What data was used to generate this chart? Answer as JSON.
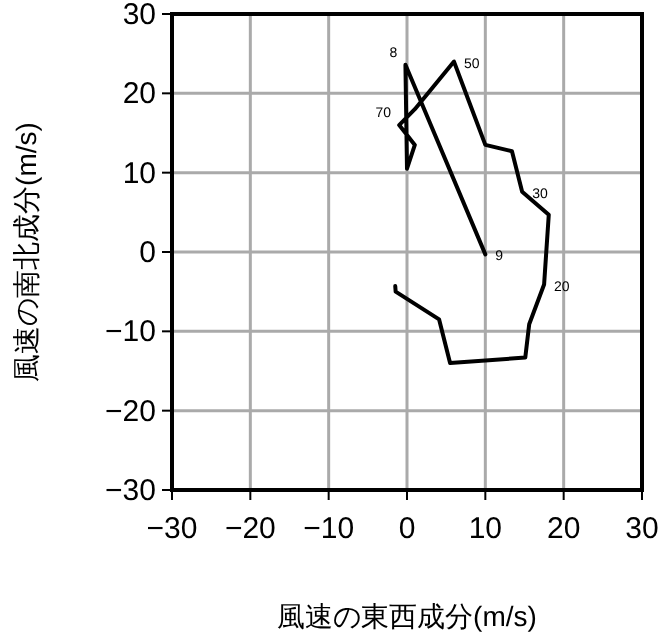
{
  "chart_data": {
    "type": "line",
    "xlabel": "風速の東西成分(m/s)",
    "ylabel": "風速の南北成分(m/s)",
    "xlim": [
      -30,
      30
    ],
    "ylim": [
      -30,
      30
    ],
    "xticks": [
      -30,
      -20,
      -10,
      0,
      10,
      20,
      30
    ],
    "yticks": [
      -30,
      -20,
      -10,
      0,
      10,
      20,
      30
    ],
    "grid": true,
    "series": [
      {
        "color": "#000000",
        "x": [
          -1.5,
          -1.45,
          4.1,
          5.5,
          15.1,
          15.6,
          17.5,
          18.1,
          14.7,
          13.4,
          10,
          7.9,
          6,
          1,
          -1,
          1,
          0,
          -0.2,
          10
        ],
        "values": [
          -4.3,
          -5,
          -8.5,
          -14,
          -13.3,
          -9.1,
          -4.1,
          4.7,
          7.6,
          12.7,
          13.5,
          19,
          24,
          18,
          16,
          13.5,
          10.5,
          23.6,
          -0.3
        ]
      }
    ],
    "annotations": [
      {
        "text": "50",
        "x": 6,
        "y": 24
      },
      {
        "text": "30",
        "x": 14.7,
        "y": 7.6
      },
      {
        "text": "20",
        "x": 17.5,
        "y": -4.1
      },
      {
        "text": "70",
        "x": -1,
        "y": 16
      },
      {
        "text": "8",
        "x": -0.2,
        "y": 23.6
      },
      {
        "text": "9",
        "x": 10,
        "y": -0.3
      }
    ]
  }
}
